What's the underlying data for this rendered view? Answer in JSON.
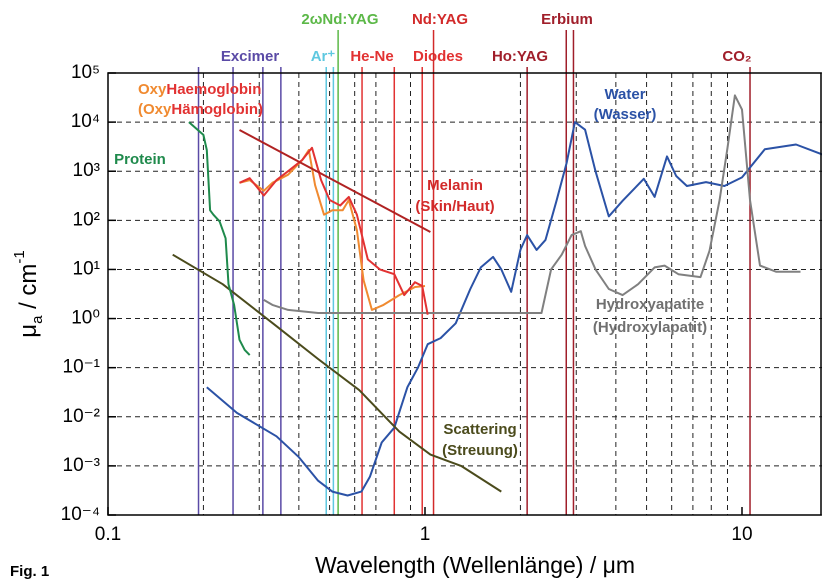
{
  "chart_data": {
    "type": "line",
    "caption": "Fig. 1",
    "xlabel": "Wavelength (Wellenlänge) / μm",
    "ylabel_parts": [
      "μ",
      "a",
      " / cm",
      "-1"
    ],
    "xscale": "log",
    "yscale": "log",
    "xlim": [
      0.1,
      17.9
    ],
    "ylim": [
      0.0001,
      100000
    ],
    "xticks": [
      0.1,
      1,
      10
    ],
    "xgrid": [
      0.2,
      0.3,
      0.4,
      0.5,
      0.6,
      0.7,
      0.8,
      0.9,
      2,
      3,
      4,
      5,
      6,
      7,
      8,
      9
    ],
    "yticks": [
      {
        "value": 0.0001,
        "label": "10⁻⁴"
      },
      {
        "value": 0.001,
        "label": "10⁻³"
      },
      {
        "value": 0.01,
        "label": "10⁻²"
      },
      {
        "value": 0.1,
        "label": "10⁻¹"
      },
      {
        "value": 1,
        "label": "10⁰"
      },
      {
        "value": 10,
        "label": "10¹"
      },
      {
        "value": 100,
        "label": "10²"
      },
      {
        "value": 1000,
        "label": "10³"
      },
      {
        "value": 10000,
        "label": "10⁴"
      },
      {
        "value": 100000,
        "label": "10⁵"
      }
    ],
    "grid": true,
    "series": [
      {
        "color": "#2b52a6",
        "x": [
          0.205,
          0.255,
          0.34,
          0.4,
          0.46,
          0.51,
          0.57,
          0.63,
          0.67,
          0.73,
          0.8,
          0.88,
          0.95,
          1.02,
          1.12,
          1.25,
          1.39,
          1.5,
          1.64,
          1.74,
          1.87,
          2.0,
          2.1,
          2.25,
          2.4,
          2.6,
          2.8,
          2.97,
          3.2,
          3.45,
          3.8,
          4.2,
          4.9,
          5.3,
          5.8,
          6.2,
          6.7,
          7.7,
          8.8,
          10,
          11.8,
          14.8,
          17.9
        ],
        "values": [
          0.04,
          0.012,
          0.004,
          0.0015,
          0.0005,
          0.0003,
          0.00025,
          0.0003,
          0.0006,
          0.003,
          0.006,
          0.04,
          0.1,
          0.3,
          0.4,
          0.8,
          4,
          11,
          18,
          10,
          3.5,
          25,
          50,
          25,
          40,
          250,
          1500,
          10000,
          7000,
          1000,
          120,
          250,
          700,
          300,
          2000,
          800,
          500,
          600,
          500,
          750,
          2800,
          3500,
          2200
        ]
      },
      {
        "color": "#808080",
        "x": [
          0.31,
          0.33,
          0.37,
          0.46,
          2.33,
          2.5,
          2.7,
          2.9,
          3.1,
          3.2,
          3.45,
          3.8,
          4.2,
          4.7,
          5.3,
          5.7,
          6.3,
          7.4,
          7.9,
          8.5,
          9.0,
          9.5,
          10,
          10.6,
          11.4,
          12.8,
          15.3
        ],
        "values": [
          2.4,
          1.9,
          1.5,
          1.3,
          1.3,
          10,
          20,
          50,
          60,
          30,
          10,
          4,
          3,
          5,
          11,
          12,
          8,
          7,
          24,
          260,
          3000,
          35000,
          18000,
          260,
          12,
          9,
          9
        ]
      },
      {
        "color": "#4b4b1c",
        "x": [
          0.16,
          0.23,
          0.34,
          0.46,
          0.62,
          0.83,
          1.04,
          1.3,
          1.74
        ],
        "values": [
          20,
          5,
          0.7,
          0.15,
          0.035,
          0.005,
          0.0017,
          0.001,
          0.0003
        ]
      },
      {
        "color": "#1f8a4c",
        "x": [
          0.18,
          0.2,
          0.205,
          0.21,
          0.215,
          0.225,
          0.235,
          0.24,
          0.25,
          0.26,
          0.27,
          0.28
        ],
        "values": [
          10000,
          5500,
          2700,
          160,
          130,
          95,
          43,
          5,
          1.9,
          0.37,
          0.23,
          0.18
        ]
      },
      {
        "color": "#f08a30",
        "x": [
          0.26,
          0.28,
          0.31,
          0.33,
          0.37,
          0.41,
          0.43,
          0.45,
          0.48,
          0.51,
          0.55,
          0.575,
          0.61,
          0.64,
          0.68,
          0.74,
          0.83,
          0.93,
          1.0
        ],
        "values": [
          580,
          660,
          400,
          580,
          850,
          1700,
          2700,
          520,
          130,
          160,
          160,
          260,
          63,
          6,
          1.5,
          1.9,
          3,
          4.4,
          4.6
        ]
      },
      {
        "color": "#e23232",
        "x": [
          0.26,
          0.28,
          0.31,
          0.34,
          0.37,
          0.41,
          0.44,
          0.47,
          0.5,
          0.54,
          0.575,
          0.61,
          0.66,
          0.72,
          0.8,
          0.86,
          0.93,
          0.98,
          1.02
        ],
        "values": [
          580,
          720,
          320,
          660,
          1000,
          1700,
          3000,
          660,
          260,
          200,
          300,
          130,
          16,
          10,
          8,
          3,
          5.5,
          4.6,
          1.2
        ]
      },
      {
        "color": "#b02222",
        "x": [
          0.26,
          1.04
        ],
        "values": [
          6900,
          58
        ]
      }
    ],
    "lasers": [
      {
        "name": "Excimer",
        "color": "#5a4aa6",
        "wavelengths": [
          0.193,
          0.248,
          0.308,
          0.351
        ]
      },
      {
        "name": "Ar⁺",
        "color": "#5ec8e0",
        "wavelengths": [
          0.488,
          0.514
        ]
      },
      {
        "name": "2ωNd:YAG",
        "color": "#5cb848",
        "wavelengths": [
          0.532
        ]
      },
      {
        "name": "He-Ne",
        "color": "#e23232",
        "wavelengths": [
          0.633
        ]
      },
      {
        "name": "Diodes",
        "color": "#e23232",
        "wavelengths": [
          0.8,
          0.98
        ]
      },
      {
        "name": "Nd:YAG",
        "color": "#d22a2a",
        "wavelengths": [
          1.064
        ]
      },
      {
        "name": "Ho:YAG",
        "color": "#a01e2a",
        "wavelengths": [
          2.1
        ]
      },
      {
        "name": "Erbium",
        "color": "#a01e2a",
        "wavelengths": [
          2.79,
          2.94
        ]
      },
      {
        "name": "CO₂",
        "color": "#a01e2a",
        "wavelengths": [
          10.6
        ]
      }
    ],
    "annotations": [
      {
        "text": "Oxy",
        "color": "#f08a30"
      },
      {
        "text": "Haemoglobin",
        "color": "#e23232"
      },
      {
        "text": "(Oxy",
        "color": "#f08a30"
      },
      {
        "text": "Hämoglobin)",
        "color": "#e23232"
      },
      {
        "text": "Protein",
        "color": "#1f8a4c"
      },
      {
        "text": "Melanin",
        "color": "#d22a2a"
      },
      {
        "text": "(Skin/Haut)",
        "color": "#d22a2a"
      },
      {
        "text": "Water",
        "color": "#2b52a6"
      },
      {
        "text": "(Wasser)",
        "color": "#2b52a6"
      },
      {
        "text": "Hydroxyapatite",
        "color": "#707070"
      },
      {
        "text": "(Hydroxylapatit)",
        "color": "#707070"
      },
      {
        "text": "Scattering",
        "color": "#4b4b1c"
      },
      {
        "text": "(Streuung)",
        "color": "#4b4b1c"
      }
    ]
  }
}
